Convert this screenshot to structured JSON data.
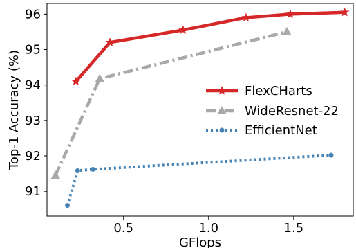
{
  "chart_data": {
    "type": "line",
    "title": "",
    "xlabel": "GFlops",
    "ylabel": "Top-1 Accuracy (%)",
    "xlim": [
      0.05,
      1.85
    ],
    "ylim": [
      90.3,
      96.3
    ],
    "xticks": [
      0.5,
      1.0,
      1.5
    ],
    "xtick_labels": [
      "0.5",
      "1.0",
      "1.5"
    ],
    "yticks": [
      91,
      92,
      93,
      94,
      95,
      96
    ],
    "ytick_labels": [
      "91",
      "92",
      "93",
      "94",
      "95",
      "96"
    ],
    "grid": false,
    "legend_position": "center-right",
    "series": [
      {
        "name": "FlexCHarts",
        "color": "#d62728",
        "line_style": "solid",
        "marker": "star",
        "x": [
          0.22,
          0.42,
          0.85,
          1.22,
          1.48,
          1.8
        ],
        "y": [
          94.1,
          95.2,
          95.55,
          95.9,
          96.0,
          96.05
        ]
      },
      {
        "name": "WideResnet-22",
        "color": "#a9a9a9",
        "line_style": "dashdot",
        "marker": "triangle",
        "x": [
          0.1,
          0.36,
          1.46
        ],
        "y": [
          91.45,
          94.18,
          95.5
        ]
      },
      {
        "name": "EfficientNet",
        "color": "#4682b4",
        "line_style": "dotted",
        "marker": "circle",
        "x": [
          0.17,
          0.23,
          0.32,
          1.72
        ],
        "y": [
          90.6,
          91.58,
          91.62,
          92.02
        ]
      }
    ]
  }
}
